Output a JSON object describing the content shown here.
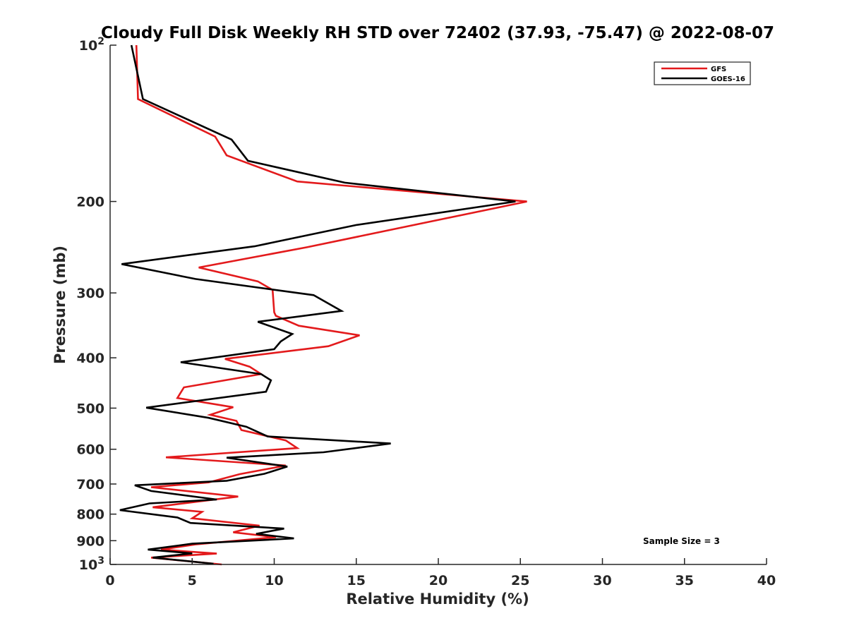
{
  "chart_data": {
    "type": "line",
    "title": "Cloudy Full Disk Weekly RH STD over 72402 (37.93, -75.47) @ 2022-08-07",
    "xlabel": "Relative Humidity (%)",
    "ylabel": "Pressure (mb)",
    "xlim": [
      0,
      40
    ],
    "ylim": [
      100,
      1000
    ],
    "y_scale": "log",
    "y_reversed": true,
    "x_ticks": [
      "0",
      "5",
      "10",
      "15",
      "20",
      "25",
      "30",
      "35",
      "40"
    ],
    "y_ticks": [
      {
        "value": 100,
        "base": "10",
        "exp": "2"
      },
      {
        "value": 200,
        "label": "200"
      },
      {
        "value": 300,
        "label": "300"
      },
      {
        "value": 400,
        "label": "400"
      },
      {
        "value": 500,
        "label": "500"
      },
      {
        "value": 600,
        "label": "600"
      },
      {
        "value": 700,
        "label": "700"
      },
      {
        "value": 800,
        "label": "800"
      },
      {
        "value": 900,
        "label": "900"
      },
      {
        "value": 1000,
        "base": "10",
        "exp": "3"
      }
    ],
    "legend_position": "top-right",
    "annotation": "Sample Size = 3",
    "series": [
      {
        "name": "GFS",
        "color": "#e31a1c",
        "x": [
          1.6,
          1.7,
          6.4,
          7.1,
          11.4,
          25.4,
          12.0,
          5.4,
          9.0,
          9.9,
          10.0,
          10.1,
          11.5,
          15.2,
          13.3,
          7.0,
          8.5,
          9.2,
          4.5,
          4.1,
          7.5,
          6.1,
          7.7,
          8.0,
          10.7,
          11.4,
          3.4,
          10.7,
          7.9,
          6.0,
          2.5,
          7.8,
          2.6,
          5.6,
          5.0,
          9.1,
          7.5,
          10.1,
          5.2,
          3.1,
          6.5,
          2.5,
          6.8
        ],
        "y": [
          100,
          127,
          150,
          163,
          183,
          200,
          245,
          268,
          285,
          296,
          327,
          332,
          347,
          362,
          380,
          402,
          416,
          430,
          456,
          478,
          498,
          515,
          529,
          551,
          577,
          597,
          622,
          645,
          670,
          695,
          710,
          740,
          776,
          792,
          815,
          842,
          867,
          886,
          915,
          936,
          953,
          970,
          1000
        ]
      },
      {
        "name": "GOES-16",
        "color": "#000000",
        "x": [
          1.3,
          2.0,
          7.4,
          8.4,
          14.3,
          24.7,
          15.0,
          8.8,
          0.7,
          5.2,
          12.4,
          14.1,
          9.0,
          11.1,
          10.4,
          10.0,
          4.3,
          9.2,
          9.8,
          9.5,
          2.2,
          6.0,
          8.3,
          9.6,
          17.1,
          13.0,
          7.1,
          10.8,
          9.4,
          7.1,
          1.5,
          2.5,
          6.5,
          2.4,
          0.6,
          4.1,
          4.9,
          10.6,
          8.9,
          11.2,
          5.0,
          2.3,
          5.0,
          2.6,
          6.3
        ],
        "y": [
          100,
          127,
          152,
          167,
          184,
          200,
          222,
          244,
          264,
          282,
          303,
          325,
          341,
          360,
          372,
          385,
          408,
          430,
          442,
          465,
          499,
          522,
          543,
          567,
          585,
          608,
          623,
          648,
          669,
          690,
          704,
          722,
          750,
          763,
          786,
          812,
          832,
          853,
          873,
          891,
          912,
          936,
          952,
          970,
          997
        ]
      }
    ]
  }
}
